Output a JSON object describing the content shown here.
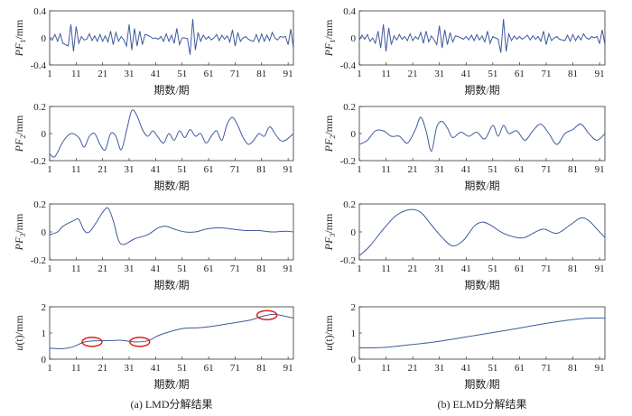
{
  "chart_data": [
    {
      "type": "line",
      "panel": "LMD",
      "ylabel": {
        "main": "PF",
        "sub": "1",
        "rest": "/mm"
      },
      "xlabel": "期数/期",
      "xlim": [
        1,
        93
      ],
      "ylim": [
        -0.4,
        0.4
      ],
      "yticks": [
        "-0.4",
        "0",
        "0.4"
      ],
      "xticks": [
        "1",
        "11",
        "21",
        "31",
        "41",
        "51",
        "61",
        "71",
        "81",
        "91"
      ],
      "smooth": false,
      "x": [
        1,
        2,
        3,
        4,
        5,
        6,
        7,
        8,
        9,
        10,
        11,
        12,
        13,
        14,
        15,
        16,
        17,
        18,
        19,
        20,
        21,
        22,
        23,
        24,
        25,
        26,
        27,
        28,
        29,
        30,
        31,
        32,
        33,
        34,
        35,
        36,
        37,
        38,
        39,
        40,
        41,
        42,
        43,
        44,
        45,
        46,
        47,
        48,
        49,
        50,
        51,
        52,
        53,
        54,
        55,
        56,
        57,
        58,
        59,
        60,
        61,
        62,
        63,
        64,
        65,
        66,
        67,
        68,
        69,
        70,
        71,
        72,
        73,
        74,
        75,
        76,
        77,
        78,
        79,
        80,
        81,
        82,
        83,
        84,
        85,
        86,
        87,
        88,
        89,
        90,
        91,
        92,
        93
      ],
      "y": [
        -0.02,
        -0.03,
        0.05,
        -0.05,
        0.06,
        -0.08,
        -0.1,
        -0.12,
        0.2,
        -0.2,
        0.17,
        -0.08,
        0.02,
        -0.03,
        -0.02,
        0.06,
        -0.04,
        0.03,
        -0.05,
        0.05,
        -0.05,
        0.03,
        -0.06,
        0.1,
        -0.1,
        0.08,
        -0.05,
        0.02,
        -0.03,
        -0.12,
        0.2,
        -0.18,
        0.14,
        -0.12,
        0.1,
        -0.1,
        0.05,
        0.04,
        0.02,
        -0.01,
        0.0,
        -0.02,
        0.02,
        -0.05,
        0.06,
        -0.05,
        0.04,
        -0.08,
        0.14,
        -0.1,
        0.0,
        0.0,
        -0.01,
        -0.25,
        0.28,
        -0.18,
        0.08,
        -0.05,
        0.04,
        -0.02,
        0.02,
        -0.03,
        0.0,
        0.05,
        -0.04,
        0.04,
        -0.02,
        0.03,
        -0.06,
        0.12,
        -0.12,
        0.08,
        -0.05,
        0.0,
        0.02,
        -0.02,
        -0.04,
        -0.05,
        0.05,
        -0.06,
        0.06,
        -0.05,
        0.04,
        -0.04,
        0.08,
        0.0,
        -0.03,
        0.02,
        0.01,
        0.02,
        -0.1,
        0.13,
        -0.15
      ]
    },
    {
      "type": "line",
      "panel": "ELMD",
      "ylabel": {
        "main": "PF",
        "sub": "1",
        "rest": "/mm"
      },
      "xlabel": "期数/期",
      "xlim": [
        1,
        93
      ],
      "ylim": [
        -0.4,
        0.4
      ],
      "yticks": [
        "-0.4",
        "0",
        "0.4"
      ],
      "xticks": [
        "1",
        "11",
        "21",
        "31",
        "41",
        "51",
        "61",
        "71",
        "81",
        "91"
      ],
      "smooth": false,
      "x": [
        1,
        2,
        3,
        4,
        5,
        6,
        7,
        8,
        9,
        10,
        11,
        12,
        13,
        14,
        15,
        16,
        17,
        18,
        19,
        20,
        21,
        22,
        23,
        24,
        25,
        26,
        27,
        28,
        29,
        30,
        31,
        32,
        33,
        34,
        35,
        36,
        37,
        38,
        39,
        40,
        41,
        42,
        43,
        44,
        45,
        46,
        47,
        48,
        49,
        50,
        51,
        52,
        53,
        54,
        55,
        56,
        57,
        58,
        59,
        60,
        61,
        62,
        63,
        64,
        65,
        66,
        67,
        68,
        69,
        70,
        71,
        72,
        73,
        74,
        75,
        76,
        77,
        78,
        79,
        80,
        81,
        82,
        83,
        84,
        85,
        86,
        87,
        88,
        89,
        90,
        91,
        92,
        93
      ],
      "y": [
        -0.03,
        0.04,
        -0.02,
        0.05,
        -0.05,
        0.0,
        -0.08,
        0.1,
        -0.15,
        0.2,
        -0.2,
        0.15,
        -0.1,
        0.03,
        -0.03,
        0.05,
        -0.02,
        0.02,
        -0.04,
        0.06,
        -0.04,
        0.02,
        -0.02,
        0.08,
        -0.08,
        0.1,
        -0.06,
        0.03,
        -0.03,
        -0.1,
        0.18,
        -0.15,
        0.12,
        -0.1,
        0.08,
        -0.06,
        0.03,
        0.02,
        0.0,
        -0.02,
        0.02,
        -0.03,
        0.04,
        -0.04,
        0.05,
        -0.03,
        0.03,
        -0.06,
        0.1,
        -0.08,
        0.02,
        0.0,
        -0.02,
        -0.22,
        0.28,
        -0.2,
        0.06,
        -0.04,
        0.03,
        -0.02,
        0.02,
        -0.02,
        0.01,
        0.04,
        -0.03,
        0.03,
        -0.02,
        0.02,
        -0.05,
        0.1,
        -0.1,
        0.06,
        -0.04,
        0.0,
        0.02,
        -0.02,
        -0.03,
        -0.04,
        0.04,
        -0.05,
        0.05,
        -0.04,
        0.03,
        -0.03,
        0.06,
        0.0,
        -0.02,
        0.02,
        0.0,
        0.02,
        -0.08,
        0.12,
        -0.1
      ]
    },
    {
      "type": "line",
      "panel": "LMD",
      "ylabel": {
        "main": "PF",
        "sub": "2",
        "rest": "/mm"
      },
      "xlabel": "期数/期",
      "xlim": [
        1,
        93
      ],
      "ylim": [
        -0.2,
        0.2
      ],
      "yticks": [
        "-0.2",
        "0",
        "0.2"
      ],
      "xticks": [
        "1",
        "11",
        "21",
        "31",
        "41",
        "51",
        "61",
        "71",
        "81",
        "91"
      ],
      "smooth": true,
      "x": [
        1,
        3,
        6,
        9,
        12,
        14,
        16,
        18,
        20,
        22,
        24,
        26,
        28,
        30,
        32,
        34,
        36,
        38,
        40,
        42,
        44,
        46,
        48,
        50,
        52,
        54,
        56,
        58,
        60,
        62,
        64,
        66,
        68,
        70,
        72,
        74,
        76,
        78,
        80,
        82,
        84,
        86,
        88,
        90,
        93
      ],
      "y": [
        -0.15,
        -0.17,
        -0.06,
        0.0,
        -0.03,
        -0.1,
        -0.02,
        0.0,
        -0.08,
        -0.12,
        0.0,
        -0.02,
        -0.12,
        0.02,
        0.17,
        0.13,
        0.03,
        -0.02,
        0.02,
        -0.03,
        -0.07,
        0.0,
        -0.05,
        0.02,
        -0.03,
        0.03,
        -0.02,
        0.0,
        -0.07,
        -0.02,
        0.02,
        -0.05,
        0.07,
        0.12,
        0.06,
        -0.03,
        -0.08,
        -0.05,
        0.0,
        -0.02,
        0.05,
        0.0,
        -0.05,
        -0.05,
        0.0
      ]
    },
    {
      "type": "line",
      "panel": "ELMD",
      "ylabel": {
        "main": "PF",
        "sub": "2",
        "rest": "/mm"
      },
      "xlabel": "期数/期",
      "xlim": [
        1,
        93
      ],
      "ylim": [
        -0.2,
        0.2
      ],
      "yticks": [
        "-0.2",
        "0",
        "0.2"
      ],
      "xticks": [
        "1",
        "11",
        "21",
        "31",
        "41",
        "51",
        "61",
        "71",
        "81",
        "91"
      ],
      "smooth": true,
      "x": [
        1,
        4,
        7,
        10,
        13,
        16,
        19,
        22,
        24,
        26,
        28,
        30,
        32,
        34,
        36,
        39,
        42,
        45,
        48,
        51,
        53,
        55,
        57,
        60,
        63,
        66,
        69,
        72,
        75,
        78,
        81,
        84,
        87,
        90,
        93
      ],
      "y": [
        -0.08,
        -0.05,
        0.02,
        0.02,
        -0.02,
        -0.02,
        -0.07,
        0.03,
        0.12,
        0.02,
        -0.13,
        0.05,
        0.09,
        0.04,
        -0.03,
        0.01,
        -0.02,
        0.01,
        -0.04,
        0.06,
        -0.02,
        0.06,
        0.0,
        0.02,
        -0.05,
        0.02,
        0.07,
        0.0,
        -0.08,
        0.0,
        0.03,
        0.07,
        0.0,
        -0.05,
        0.0
      ]
    },
    {
      "type": "line",
      "panel": "LMD",
      "ylabel": {
        "main": "PF",
        "sub": "3",
        "rest": "/mm"
      },
      "xlabel": "期数/期",
      "xlim": [
        1,
        93
      ],
      "ylim": [
        -0.2,
        0.2
      ],
      "yticks": [
        "-0.2",
        "0",
        "0.2"
      ],
      "xticks": [
        "1",
        "11",
        "21",
        "31",
        "41",
        "51",
        "61",
        "71",
        "81",
        "91"
      ],
      "smooth": true,
      "x": [
        1,
        4,
        6,
        10,
        12,
        14,
        16,
        19,
        21,
        23,
        25,
        27,
        29,
        33,
        38,
        42,
        45,
        48,
        52,
        56,
        60,
        65,
        70,
        75,
        80,
        85,
        90,
        93
      ],
      "y": [
        -0.02,
        0.0,
        0.04,
        0.08,
        0.09,
        0.01,
        0.0,
        0.08,
        0.14,
        0.17,
        0.08,
        -0.06,
        -0.09,
        -0.05,
        -0.02,
        0.03,
        0.04,
        0.02,
        0.0,
        0.0,
        0.02,
        0.03,
        0.02,
        0.01,
        0.01,
        0.0,
        0.005,
        0.0
      ]
    },
    {
      "type": "line",
      "panel": "ELMD",
      "ylabel": {
        "main": "PF",
        "sub": "3",
        "rest": "/mm"
      },
      "xlabel": "期数/期",
      "xlim": [
        1,
        93
      ],
      "ylim": [
        -0.2,
        0.2
      ],
      "yticks": [
        "-0.2",
        "0",
        "0.2"
      ],
      "xticks": [
        "1",
        "11",
        "21",
        "31",
        "41",
        "51",
        "61",
        "71",
        "81",
        "91"
      ],
      "smooth": true,
      "x": [
        1,
        5,
        10,
        15,
        20,
        24,
        28,
        32,
        36,
        40,
        44,
        47,
        50,
        55,
        60,
        63,
        66,
        70,
        75,
        80,
        84,
        87,
        90,
        93
      ],
      "y": [
        -0.17,
        -0.1,
        0.02,
        0.12,
        0.16,
        0.14,
        0.05,
        -0.04,
        -0.1,
        -0.06,
        0.04,
        0.07,
        0.05,
        -0.01,
        -0.04,
        -0.04,
        -0.01,
        0.02,
        -0.01,
        0.05,
        0.1,
        0.08,
        0.02,
        -0.04
      ]
    },
    {
      "type": "line",
      "panel": "LMD",
      "ylabel": {
        "main": "u",
        "sub": "",
        "rest": "(t)/mm"
      },
      "xlabel": "期数/期",
      "xlim": [
        1,
        93
      ],
      "ylim": [
        0,
        2
      ],
      "yticks": [
        "0",
        "1",
        "2"
      ],
      "xticks": [
        "1",
        "11",
        "21",
        "31",
        "41",
        "51",
        "61",
        "71",
        "81",
        "91"
      ],
      "smooth": true,
      "x": [
        1,
        6,
        10,
        14,
        18,
        24,
        28,
        33,
        38,
        42,
        47,
        52,
        57,
        62,
        67,
        72,
        77,
        80,
        84,
        87,
        93
      ],
      "y": [
        0.42,
        0.4,
        0.48,
        0.65,
        0.7,
        0.71,
        0.72,
        0.66,
        0.7,
        0.9,
        1.07,
        1.18,
        1.2,
        1.25,
        1.33,
        1.41,
        1.5,
        1.6,
        1.7,
        1.7,
        1.57
      ],
      "annotations": [
        {
          "shape": "ellipse",
          "x": 17,
          "y": 0.66
        },
        {
          "shape": "ellipse",
          "x": 35,
          "y": 0.66
        },
        {
          "shape": "ellipse",
          "x": 83,
          "y": 1.68
        }
      ]
    },
    {
      "type": "line",
      "panel": "ELMD",
      "ylabel": {
        "main": "u",
        "sub": "",
        "rest": "(t)/mm"
      },
      "xlabel": "期数/期",
      "xlim": [
        1,
        93
      ],
      "ylim": [
        0,
        2
      ],
      "yticks": [
        "0",
        "1",
        "2"
      ],
      "xticks": [
        "1",
        "11",
        "21",
        "31",
        "41",
        "51",
        "61",
        "71",
        "81",
        "91"
      ],
      "smooth": true,
      "x": [
        1,
        10,
        20,
        30,
        40,
        50,
        60,
        70,
        80,
        87,
        93
      ],
      "y": [
        0.43,
        0.45,
        0.55,
        0.67,
        0.83,
        1.0,
        1.17,
        1.35,
        1.5,
        1.57,
        1.57
      ]
    }
  ],
  "captions": {
    "left": "(a) LMD分解结果",
    "right": "(b) ELMD分解结果"
  },
  "colors": {
    "line": "#3f5a9e",
    "annotation": "#e0201b",
    "axis": "#333333"
  }
}
